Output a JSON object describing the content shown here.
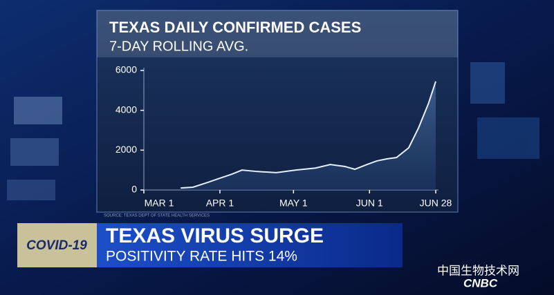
{
  "chart_data": {
    "type": "area",
    "title": "TEXAS DAILY CONFIRMED CASES",
    "subtitle": "7-DAY ROLLING AVG.",
    "source": "SOURCE: TEXAS DEPT OF STATE HEALTH SERVICES",
    "x": [
      15,
      20,
      26,
      31,
      36,
      40,
      46,
      54,
      62,
      70,
      76,
      82,
      86,
      91,
      95,
      99,
      103,
      108,
      112,
      116,
      119
    ],
    "values": [
      100,
      140,
      380,
      590,
      800,
      1000,
      930,
      870,
      1000,
      1100,
      1280,
      1180,
      1040,
      1280,
      1460,
      1560,
      1630,
      2120,
      3120,
      4330,
      5450
    ],
    "color": "#e6f0ff",
    "xlim": [
      0,
      119
    ],
    "xticks": [
      {
        "value": 0,
        "label": "MAR 1"
      },
      {
        "value": 31,
        "label": "APR 1"
      },
      {
        "value": 61,
        "label": "MAY 1"
      },
      {
        "value": 92,
        "label": "JUN 1"
      },
      {
        "value": 119,
        "label": "JUN 28"
      }
    ],
    "ylim": [
      0,
      6000
    ],
    "yticks": [
      0,
      2000,
      4000,
      6000
    ]
  },
  "banner": {
    "tag": "COVID-19",
    "headline": "TEXAS VIRUS SURGE",
    "subhead": "POSITIVITY RATE HITS 14%"
  },
  "watermark": "中国生物技术网",
  "network": "CNBC"
}
